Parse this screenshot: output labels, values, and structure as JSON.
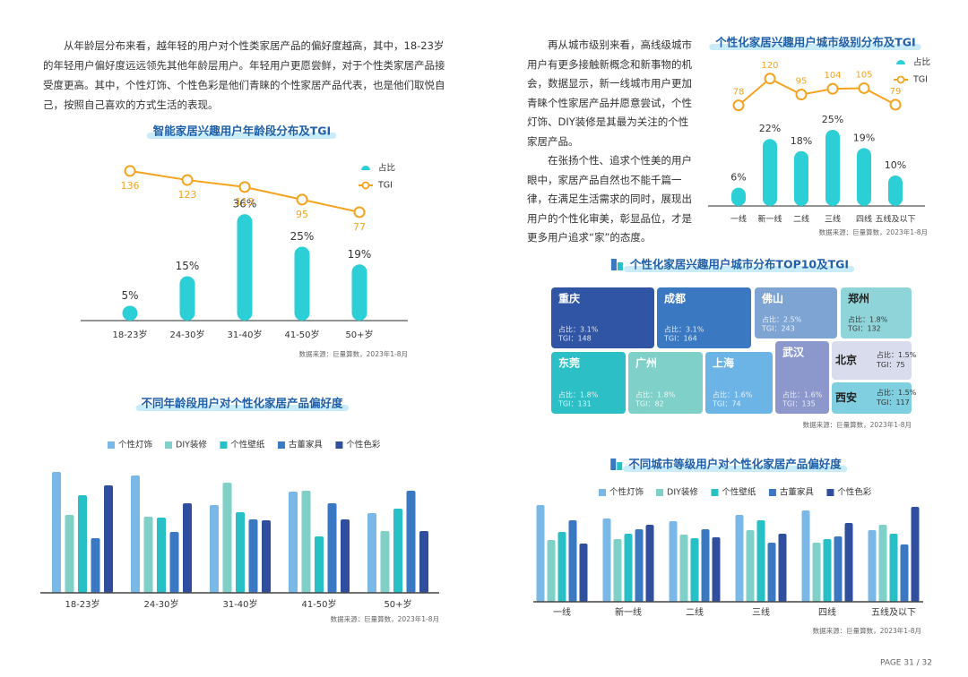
{
  "left_text": "从年龄层分布来看，越年轻的用户对个性类家居产品的偏好度越高，其中，18-23岁的年轻用户偏好度远远领先其他年龄层用户。年轻用户更愿尝鲜，对于个性类家居产品接受度更高。其中，个性灯饰、个性色彩是他们青睐的个性家居产品代表，也是他们取悦自己，按照自己喜欢的方式生活的表现。",
  "right_text": [
    "再从城市级别来看，高线级城市用户有更多接触新概念和新事物的机会，数据显示，新一线城市用户更加青睐个性家居产品并愿意尝试，个性灯饰、DIY装修是其最为关注的个性家居产品。",
    "在张扬个性、追求个性美的用户眼中，家居产品自然也不能千篇一律，在满足生活需求的同时，展现出用户的个性化审美，彰显品位，才是更多用户追求“家”的态度。"
  ],
  "page_label": "PAGE 31 / 32",
  "chart_data": [
    {
      "type": "combo",
      "title": "智能家居兴趣用户年龄段分布及TGI",
      "source": "数据来源：巨量算数，2023年1-8月",
      "categories": [
        "18-23岁",
        "24-30岁",
        "31-40岁",
        "41-50岁",
        "50+岁"
      ],
      "series": [
        {
          "name": "占比",
          "color": "#2ccfd6",
          "values": [
            5,
            15,
            36,
            25,
            19
          ],
          "value_labels": [
            "5%",
            "15%",
            "36%",
            "25%",
            "19%"
          ]
        },
        {
          "name": "TGI",
          "color": "#f5a31e",
          "axis": "y2",
          "values": [
            136,
            123,
            113,
            95,
            77
          ]
        }
      ]
    },
    {
      "type": "grouped",
      "title": "不同年龄段用户对个性化家居产品偏好度",
      "source": "数据来源：巨量算数，2023年1-8月",
      "categories": [
        "18-23岁",
        "24-30岁",
        "31-40岁",
        "41-50岁",
        "50+岁"
      ],
      "series": [
        {
          "name": "个性灯饰",
          "color": "#7ab8e8",
          "values": [
            135,
            131,
            98,
            113,
            89
          ]
        },
        {
          "name": "DIY装修",
          "color": "#7fd0c8",
          "values": [
            87,
            85,
            123,
            114,
            69
          ]
        },
        {
          "name": "个性壁纸",
          "color": "#27c0c6",
          "values": [
            109,
            84,
            90,
            63,
            94
          ]
        },
        {
          "name": "古董家具",
          "color": "#3a78c2",
          "values": [
            61,
            68,
            82,
            100,
            114
          ]
        },
        {
          "name": "个性色彩",
          "color": "#2f4f9e",
          "values": [
            120,
            100,
            81,
            82,
            69
          ]
        }
      ]
    },
    {
      "type": "combo",
      "title": "个性化家居兴趣用户城市级别分布及TGI",
      "source": "数据来源：巨量算数，2023年1-8月",
      "categories": [
        "一线",
        "新一线",
        "二线",
        "三线",
        "四线",
        "五线及以下"
      ],
      "series": [
        {
          "name": "占比",
          "color": "#2ccfd6",
          "values": [
            6,
            22,
            18,
            25,
            19,
            10
          ],
          "value_labels": [
            "6%",
            "22%",
            "18%",
            "25%",
            "19%",
            "10%"
          ]
        },
        {
          "name": "TGI",
          "color": "#f5a31e",
          "axis": "y2",
          "values": [
            78,
            120,
            95,
            104,
            105,
            79
          ]
        }
      ]
    },
    {
      "type": "treemap",
      "title": "个性化家居兴趣用户城市分布TOP10及TGI",
      "source": "数据来源：巨量算数，2023年1-8月",
      "categories": [
        "重庆",
        "成都",
        "佛山",
        "郑州",
        "东莞",
        "广州",
        "上海",
        "武汉",
        "北京",
        "西安"
      ],
      "values": [
        3.1,
        3.1,
        2.5,
        1.8,
        1.8,
        1.8,
        1.6,
        1.6,
        1.5,
        1.5
      ],
      "value_labels": [
        "占比：3.1%",
        "占比：3.1%",
        "占比：2.5%",
        "占比：1.8%",
        "占比：1.8%",
        "占比：1.8%",
        "占比：1.6%",
        "占比：1.6%",
        "占比：1.5%",
        "占比：1.5%"
      ],
      "tgi": [
        148,
        164,
        243,
        132,
        131,
        82,
        74,
        135,
        75,
        117
      ],
      "tgi_labels": [
        "TGI：148",
        "TGI：164",
        "TGI：243",
        "TGI：132",
        "TGI：131",
        "TGI：82",
        "TGI：74",
        "TGI：135",
        "TGI：75",
        "TGI：117"
      ],
      "colors": [
        "#2f55a4",
        "#3a78c2",
        "#7ea4d4",
        "#8fd4d8",
        "#2cc0c6",
        "#7fd0c8",
        "#6cb4e6",
        "#8c97cc",
        "#d8dcec",
        "#7fcfe0"
      ]
    },
    {
      "type": "grouped",
      "title": "不同城市等级用户对个性化家居产品偏好度",
      "source": "数据来源：巨量算数，2023年1-8月",
      "categories": [
        "一线",
        "新一线",
        "二线",
        "三线",
        "四线",
        "五线及以下"
      ],
      "series": [
        {
          "name": "个性灯饰",
          "color": "#7ab8e8",
          "values": [
            108,
            93,
            90,
            97,
            102,
            80
          ]
        },
        {
          "name": "DIY装修",
          "color": "#7fd0c8",
          "values": [
            69,
            70,
            75,
            80,
            66,
            86
          ]
        },
        {
          "name": "个性壁纸",
          "color": "#27c0c6",
          "values": [
            78,
            76,
            71,
            91,
            70,
            76
          ]
        },
        {
          "name": "古董家具",
          "color": "#3a78c2",
          "values": [
            91,
            81,
            81,
            66,
            73,
            64
          ]
        },
        {
          "name": "个性色彩",
          "color": "#2f4f9e",
          "values": [
            65,
            86,
            72,
            76,
            88,
            106
          ]
        }
      ]
    }
  ]
}
